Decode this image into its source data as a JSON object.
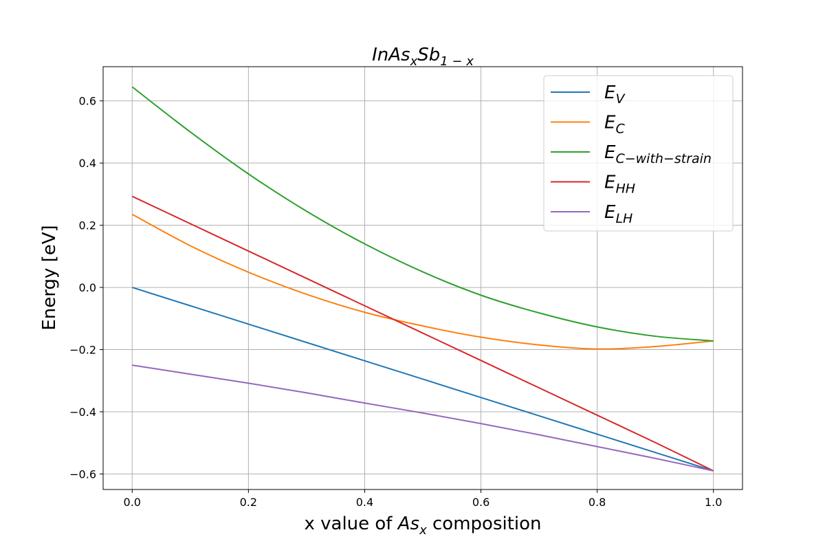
{
  "chart_data": {
    "type": "line",
    "title": {
      "base": "InAs",
      "sub1": "x",
      "mid": "Sb",
      "sub2": "1 − x"
    },
    "xlabel": {
      "before": "x value of ",
      "var": "As",
      "sub": "x",
      "after": " composition"
    },
    "ylabel": "Energy [eV]",
    "xlim": [
      -0.05,
      1.05
    ],
    "ylim": [
      -0.65,
      0.71
    ],
    "xticks": [
      0.0,
      0.2,
      0.4,
      0.6,
      0.8,
      1.0
    ],
    "xtick_labels": [
      "0.0",
      "0.2",
      "0.4",
      "0.6",
      "0.8",
      "1.0"
    ],
    "yticks": [
      -0.6,
      -0.4,
      -0.2,
      0.0,
      0.2,
      0.4,
      0.6
    ],
    "ytick_labels": [
      "−0.6",
      "−0.4",
      "−0.2",
      "0.0",
      "0.2",
      "0.4",
      "0.6"
    ],
    "grid": true,
    "legend_position": "top-right",
    "x": [
      0.0,
      0.1,
      0.2,
      0.3,
      0.4,
      0.5,
      0.6,
      0.7,
      0.8,
      0.9,
      1.0
    ],
    "series": [
      {
        "name": "V",
        "color": "#1f77b4",
        "values": [
          0.0,
          -0.059,
          -0.118,
          -0.177,
          -0.236,
          -0.295,
          -0.354,
          -0.413,
          -0.472,
          -0.531,
          -0.59
        ]
      },
      {
        "name": "C",
        "color": "#ff7f0e",
        "values": [
          0.235,
          0.134,
          0.049,
          -0.022,
          -0.08,
          -0.124,
          -0.16,
          -0.185,
          -0.198,
          -0.19,
          -0.172
        ]
      },
      {
        "name": "C−with−strain",
        "color": "#2ca02c",
        "values": [
          0.645,
          0.5,
          0.365,
          0.245,
          0.14,
          0.05,
          -0.025,
          -0.082,
          -0.127,
          -0.157,
          -0.172
        ]
      },
      {
        "name": "HH",
        "color": "#d62728",
        "values": [
          0.293,
          0.205,
          0.117,
          0.029,
          -0.059,
          -0.147,
          -0.235,
          -0.323,
          -0.411,
          -0.499,
          -0.59
        ]
      },
      {
        "name": "LH",
        "color": "#9467bd",
        "values": [
          -0.25,
          -0.279,
          -0.308,
          -0.339,
          -0.372,
          -0.404,
          -0.438,
          -0.474,
          -0.512,
          -0.55,
          -0.59
        ]
      }
    ],
    "legend_prefix": "E"
  }
}
